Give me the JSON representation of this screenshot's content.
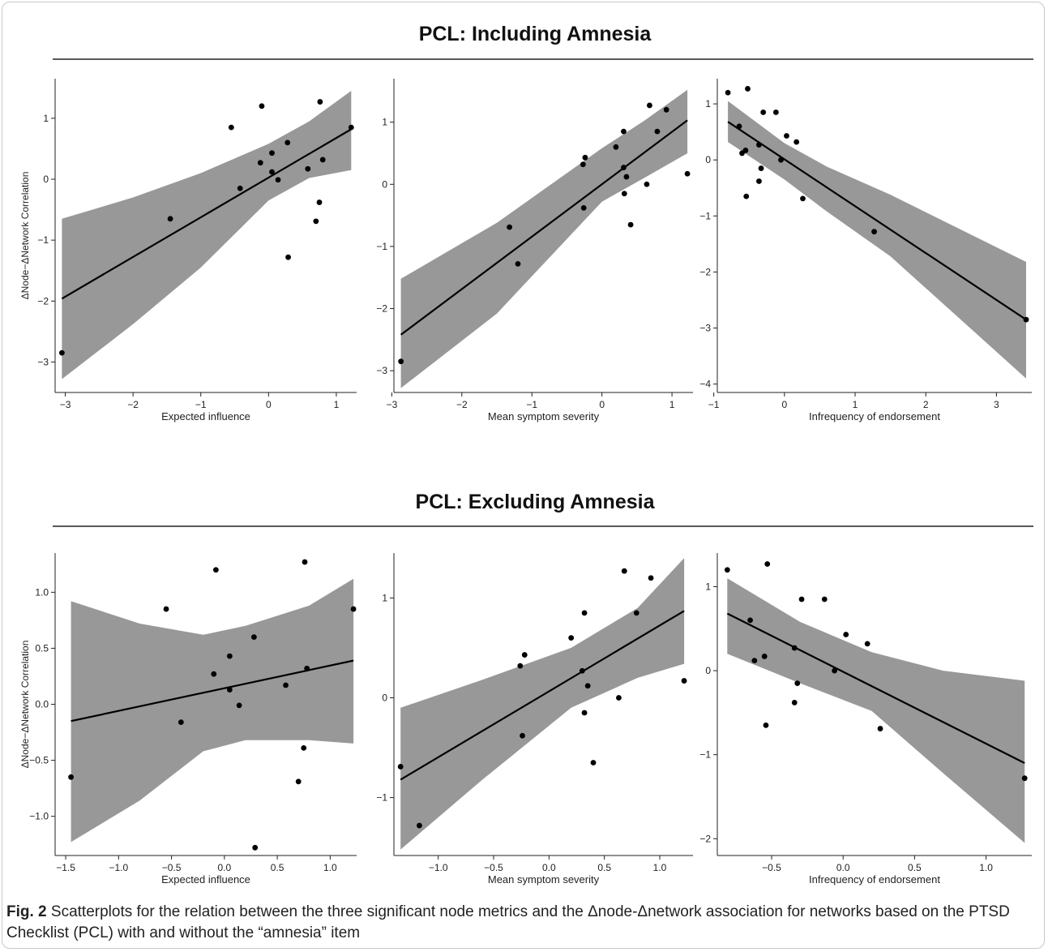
{
  "caption": {
    "label": "Fig. 2",
    "text": " Scatterplots for the relation between the three significant node metrics and the Δnode-Δnetwork association for networks based on the PTSD Checklist (PCL) with and without the “amnesia” item"
  },
  "panels": [
    {
      "title": "PCL: Including Amnesia"
    },
    {
      "title": "PCL: Excluding Amnesia"
    }
  ],
  "chart_data": [
    {
      "type": "scatter",
      "panel": 0,
      "xlabel": "Expected influence",
      "ylabel": "ΔNode−ΔNetwork Correlation",
      "xlim": [
        -3.15,
        1.3
      ],
      "ylim": [
        -3.5,
        1.65
      ],
      "xticks": [
        -3,
        -2,
        -1,
        0,
        1
      ],
      "xtick_labels": [
        "−3",
        "−2",
        "−1",
        "0",
        "1"
      ],
      "yticks": [
        -3,
        -2,
        -1,
        0,
        1
      ],
      "ytick_labels": [
        "−3",
        "−2",
        "−1",
        "0",
        "1"
      ],
      "points": [
        [
          -3.05,
          -2.85
        ],
        [
          -1.45,
          -0.65
        ],
        [
          -0.55,
          0.85
        ],
        [
          -0.42,
          -0.15
        ],
        [
          -0.12,
          0.27
        ],
        [
          -0.1,
          1.2
        ],
        [
          0.05,
          0.12
        ],
        [
          0.05,
          0.43
        ],
        [
          0.14,
          -0.01
        ],
        [
          0.28,
          0.6
        ],
        [
          0.29,
          -1.28
        ],
        [
          0.58,
          0.17
        ],
        [
          0.7,
          -0.69
        ],
        [
          0.75,
          -0.38
        ],
        [
          0.76,
          1.27
        ],
        [
          0.8,
          0.32
        ],
        [
          1.22,
          0.85
        ]
      ],
      "fit": [
        [
          -3.05,
          -1.96
        ],
        [
          1.22,
          0.82
        ]
      ],
      "band": {
        "x": [
          -3.05,
          -2.0,
          -1.0,
          0.0,
          0.6,
          1.22
        ],
        "upper": [
          -0.65,
          -0.3,
          0.1,
          0.58,
          0.95,
          1.45
        ],
        "lower": [
          -3.28,
          -2.38,
          -1.45,
          -0.35,
          0.02,
          0.15
        ]
      },
      "grid": false
    },
    {
      "type": "scatter",
      "panel": 0,
      "xlabel": "Mean symptom severity",
      "ylabel": "",
      "xlim": [
        -2.97,
        1.3
      ],
      "ylim": [
        -3.35,
        1.7
      ],
      "xticks": [
        -3,
        -2,
        -1,
        0,
        1
      ],
      "xtick_labels": [
        "−3",
        "−2",
        "−1",
        "0",
        "1"
      ],
      "yticks": [
        -3,
        -2,
        -1,
        0,
        1
      ],
      "ytick_labels": [
        "−3",
        "−2",
        "−1",
        "0",
        "1"
      ],
      "points": [
        [
          -2.87,
          -2.85
        ],
        [
          -1.32,
          -0.69
        ],
        [
          -1.2,
          -1.28
        ],
        [
          -0.27,
          0.32
        ],
        [
          -0.26,
          -0.38
        ],
        [
          -0.24,
          0.43
        ],
        [
          0.2,
          0.6
        ],
        [
          0.31,
          0.85
        ],
        [
          0.31,
          0.27
        ],
        [
          0.32,
          -0.15
        ],
        [
          0.35,
          0.12
        ],
        [
          0.41,
          -0.65
        ],
        [
          0.64,
          0.0
        ],
        [
          0.68,
          1.27
        ],
        [
          0.79,
          0.85
        ],
        [
          0.92,
          1.2
        ],
        [
          1.22,
          0.17
        ]
      ],
      "fit": [
        [
          -2.87,
          -2.42
        ],
        [
          1.22,
          1.03
        ]
      ],
      "band": {
        "x": [
          -2.87,
          -1.5,
          0.0,
          0.6,
          1.22
        ],
        "upper": [
          -1.52,
          -0.62,
          0.58,
          1.02,
          1.52
        ],
        "lower": [
          -3.28,
          -2.08,
          -0.28,
          0.1,
          0.5
        ]
      },
      "grid": false
    },
    {
      "type": "scatter",
      "panel": 0,
      "xlabel": "Infrequency of endorsement",
      "ylabel": "",
      "xlim": [
        -0.95,
        3.5
      ],
      "ylim": [
        -4.15,
        1.45
      ],
      "xticks": [
        -1,
        0,
        1,
        2,
        3
      ],
      "xtick_labels": [
        "−1",
        "0",
        "1",
        "2",
        "3"
      ],
      "yticks": [
        -4,
        -3,
        -2,
        -1,
        0,
        1
      ],
      "ytick_labels": [
        "−4",
        "−3",
        "−2",
        "−1",
        "0",
        "1"
      ],
      "points": [
        [
          -0.8,
          1.2
        ],
        [
          -0.64,
          0.6
        ],
        [
          -0.6,
          0.12
        ],
        [
          -0.55,
          0.17
        ],
        [
          -0.54,
          -0.65
        ],
        [
          -0.52,
          1.27
        ],
        [
          -0.36,
          0.27
        ],
        [
          -0.36,
          -0.38
        ],
        [
          -0.33,
          -0.15
        ],
        [
          -0.3,
          0.85
        ],
        [
          -0.12,
          0.85
        ],
        [
          -0.05,
          0.0
        ],
        [
          0.03,
          0.43
        ],
        [
          0.17,
          0.32
        ],
        [
          0.26,
          -0.69
        ],
        [
          1.27,
          -1.28
        ],
        [
          3.42,
          -2.85
        ]
      ],
      "fit": [
        [
          -0.8,
          0.68
        ],
        [
          3.42,
          -2.85
        ]
      ],
      "band": {
        "x": [
          -0.8,
          0.0,
          0.6,
          1.5,
          3.42
        ],
        "upper": [
          1.05,
          0.3,
          -0.12,
          -0.62,
          -1.82
        ],
        "lower": [
          0.32,
          -0.35,
          -0.92,
          -1.72,
          -3.9
        ]
      },
      "grid": false
    },
    {
      "type": "scatter",
      "panel": 1,
      "xlabel": "Expected influence",
      "ylabel": "ΔNode−ΔNetwork Correlation",
      "xlim": [
        -1.6,
        1.25
      ],
      "ylim": [
        -1.35,
        1.35
      ],
      "xticks": [
        -1.5,
        -1.0,
        -0.5,
        0.0,
        0.5,
        1.0
      ],
      "xtick_labels": [
        "−1.5",
        "−1.0",
        "−0.5",
        "0.0",
        "0.5",
        "1.0"
      ],
      "yticks": [
        -1.0,
        -0.5,
        0.0,
        0.5,
        1.0
      ],
      "ytick_labels": [
        "−1.0",
        "−0.5",
        "0.0",
        "0.5",
        "1.0"
      ],
      "points": [
        [
          -1.45,
          -0.65
        ],
        [
          -0.55,
          0.85
        ],
        [
          -0.41,
          -0.16
        ],
        [
          -0.1,
          0.27
        ],
        [
          -0.08,
          1.2
        ],
        [
          0.05,
          0.43
        ],
        [
          0.05,
          0.13
        ],
        [
          0.14,
          -0.01
        ],
        [
          0.28,
          0.6
        ],
        [
          0.29,
          -1.28
        ],
        [
          0.58,
          0.17
        ],
        [
          0.7,
          -0.69
        ],
        [
          0.75,
          -0.39
        ],
        [
          0.76,
          1.27
        ],
        [
          0.78,
          0.32
        ],
        [
          1.22,
          0.85
        ]
      ],
      "fit": [
        [
          -1.45,
          -0.15
        ],
        [
          1.22,
          0.39
        ]
      ],
      "band": {
        "x": [
          -1.45,
          -0.8,
          -0.2,
          0.2,
          0.8,
          1.22
        ],
        "upper": [
          0.92,
          0.72,
          0.62,
          0.7,
          0.88,
          1.12
        ],
        "lower": [
          -1.23,
          -0.86,
          -0.42,
          -0.32,
          -0.32,
          -0.35
        ]
      },
      "grid": false
    },
    {
      "type": "scatter",
      "panel": 1,
      "xlabel": "Mean symptom severity",
      "ylabel": "",
      "xlim": [
        -1.4,
        1.3
      ],
      "ylim": [
        -1.58,
        1.45
      ],
      "xticks": [
        -1.0,
        -0.5,
        0.0,
        0.5,
        1.0
      ],
      "xtick_labels": [
        "−1.0",
        "−0.5",
        "0.0",
        "0.5",
        "1.0"
      ],
      "yticks": [
        -1,
        0,
        1
      ],
      "ytick_labels": [
        "−1",
        "0",
        "1"
      ],
      "points": [
        [
          -1.34,
          -0.69
        ],
        [
          -1.17,
          -1.28
        ],
        [
          -0.26,
          0.32
        ],
        [
          -0.24,
          -0.38
        ],
        [
          -0.22,
          0.43
        ],
        [
          0.2,
          0.6
        ],
        [
          0.3,
          0.27
        ],
        [
          0.32,
          -0.15
        ],
        [
          0.32,
          0.85
        ],
        [
          0.35,
          0.12
        ],
        [
          0.4,
          -0.65
        ],
        [
          0.63,
          0.0
        ],
        [
          0.68,
          1.27
        ],
        [
          0.79,
          0.85
        ],
        [
          0.92,
          1.2
        ],
        [
          1.22,
          0.17
        ]
      ],
      "fit": [
        [
          -1.34,
          -0.82
        ],
        [
          1.22,
          0.87
        ]
      ],
      "band": {
        "x": [
          -1.34,
          -0.6,
          0.2,
          0.8,
          1.22
        ],
        "upper": [
          -0.1,
          0.18,
          0.5,
          0.9,
          1.4
        ],
        "lower": [
          -1.52,
          -0.82,
          -0.1,
          0.2,
          0.34
        ]
      },
      "grid": false
    },
    {
      "type": "scatter",
      "panel": 1,
      "xlabel": "Infrequency of endorsement",
      "ylabel": "",
      "xlim": [
        -0.88,
        1.32
      ],
      "ylim": [
        -2.2,
        1.4
      ],
      "xticks": [
        -0.5,
        0.0,
        0.5,
        1.0
      ],
      "xtick_labels": [
        "−0.5",
        "0.0",
        "0.5",
        "1.0"
      ],
      "yticks": [
        -2,
        -1,
        0,
        1
      ],
      "ytick_labels": [
        "−2",
        "−1",
        "0",
        "1"
      ],
      "points": [
        [
          -0.81,
          1.2
        ],
        [
          -0.65,
          0.6
        ],
        [
          -0.62,
          0.12
        ],
        [
          -0.55,
          0.17
        ],
        [
          -0.54,
          -0.65
        ],
        [
          -0.53,
          1.27
        ],
        [
          -0.34,
          0.27
        ],
        [
          -0.34,
          -0.38
        ],
        [
          -0.32,
          -0.15
        ],
        [
          -0.29,
          0.85
        ],
        [
          -0.13,
          0.85
        ],
        [
          -0.06,
          0.0
        ],
        [
          0.02,
          0.43
        ],
        [
          0.17,
          0.32
        ],
        [
          0.26,
          -0.69
        ],
        [
          1.27,
          -1.28
        ]
      ],
      "fit": [
        [
          -0.81,
          0.68
        ],
        [
          1.27,
          -1.1
        ]
      ],
      "band": {
        "x": [
          -0.81,
          -0.3,
          0.2,
          0.7,
          1.27
        ],
        "upper": [
          1.1,
          0.58,
          0.22,
          -0.0,
          -0.12
        ],
        "lower": [
          0.2,
          -0.15,
          -0.48,
          -1.22,
          -2.05
        ]
      },
      "grid": false
    }
  ]
}
